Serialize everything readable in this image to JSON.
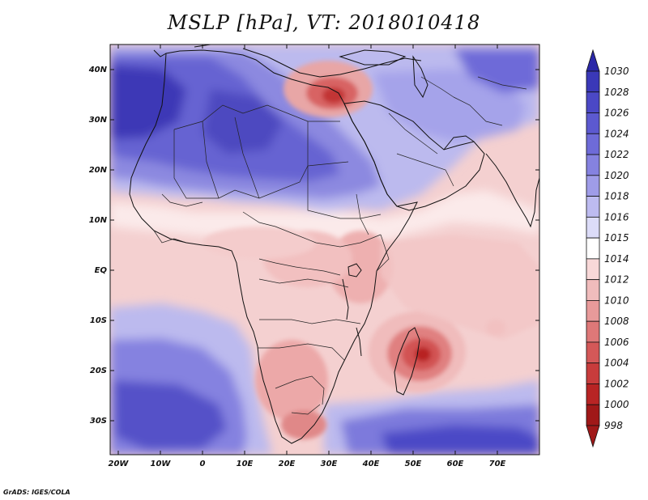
{
  "title": "MSLP [hPa], VT: 2018010418",
  "credit": "GrADS: IGES/COLA",
  "map": {
    "lat_labels": [
      "40N",
      "30N",
      "20N",
      "10N",
      "EQ",
      "10S",
      "20S",
      "30S"
    ],
    "lon_labels": [
      "20W",
      "10W",
      "0",
      "10E",
      "20E",
      "30E",
      "40E",
      "50E",
      "60E",
      "70E"
    ],
    "highs": [
      "subtropical high over North Africa",
      "South Atlantic high",
      "Indian Ocean high"
    ],
    "lows": [
      "low over eastern Mediterranean",
      "tropical low east of Madagascar"
    ]
  },
  "colorbar": {
    "levels": [
      "1030",
      "1028",
      "1026",
      "1024",
      "1022",
      "1020",
      "1018",
      "1016",
      "1015",
      "1014",
      "1012",
      "1010",
      "1008",
      "1006",
      "1004",
      "1002",
      "1000",
      "998"
    ],
    "colors": [
      "#2b28a8",
      "#3a38b8",
      "#4b48c6",
      "#5c59d0",
      "#6e6bd8",
      "#8582e0",
      "#9f9ce8",
      "#bdbbf0",
      "#dcdcf8",
      "#ffffff",
      "#f8d8d8",
      "#f0bcbc",
      "#e89a9a",
      "#de7878",
      "#d45858",
      "#c83c3c",
      "#b82424",
      "#a01818"
    ]
  }
}
